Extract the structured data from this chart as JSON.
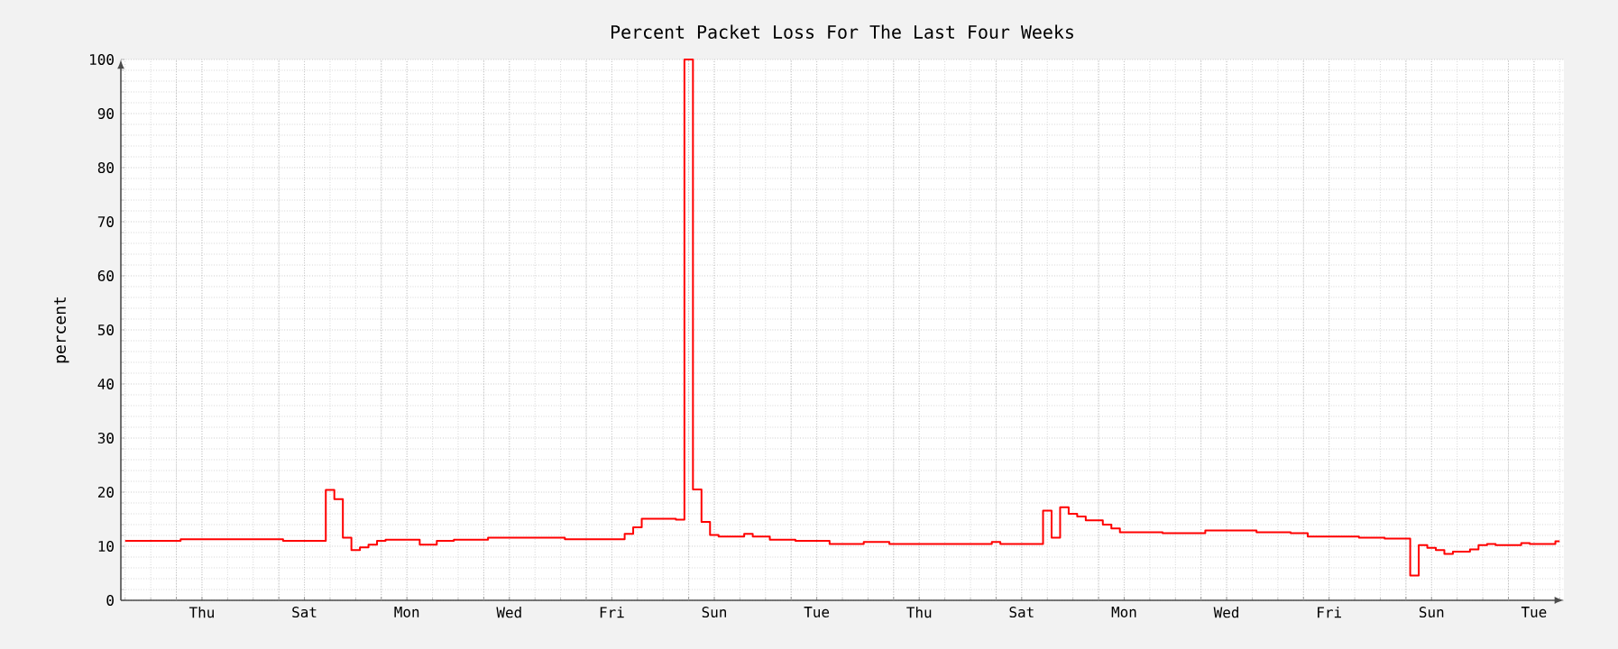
{
  "chart_data": {
    "type": "step",
    "title": "Percent Packet Loss For The Last Four Weeks",
    "ylabel": "percent",
    "color": "#ff0000",
    "grid": true,
    "categories": [
      null,
      null,
      null,
      null,
      null,
      null,
      null,
      null,
      null,
      "Thu",
      null,
      null,
      null,
      null,
      null,
      null,
      null,
      null,
      null,
      null,
      null,
      "Sat",
      null,
      null,
      null,
      null,
      null,
      null,
      null,
      null,
      null,
      null,
      null,
      "Mon",
      null,
      null,
      null,
      null,
      null,
      null,
      null,
      null,
      null,
      null,
      null,
      "Wed",
      null,
      null,
      null,
      null,
      null,
      null,
      null,
      null,
      null,
      null,
      null,
      "Fri",
      null,
      null,
      null,
      null,
      null,
      null,
      null,
      null,
      null,
      null,
      null,
      "Sun",
      null,
      null,
      null,
      null,
      null,
      null,
      null,
      null,
      null,
      null,
      null,
      "Tue",
      null,
      null,
      null,
      null,
      null,
      null,
      null,
      null,
      null,
      null,
      null,
      "Thu",
      null,
      null,
      null,
      null,
      null,
      null,
      null,
      null,
      null,
      null,
      null,
      "Sat",
      null,
      null,
      null,
      null,
      null,
      null,
      null,
      null,
      null,
      null,
      null,
      "Mon",
      null,
      null,
      null,
      null,
      null,
      null,
      null,
      null,
      null,
      null,
      null,
      "Wed",
      null,
      null,
      null,
      null,
      null,
      null,
      null,
      null,
      null,
      null,
      null,
      "Fri",
      null,
      null,
      null,
      null,
      null,
      null,
      null,
      null,
      null,
      null,
      null,
      "Sun",
      null,
      null,
      null,
      null,
      null,
      null,
      null,
      null,
      null,
      null,
      null,
      "Tue",
      null,
      null,
      null
    ],
    "values": [
      11.0,
      11.0,
      11.0,
      11.0,
      11.0,
      11.0,
      11.0,
      11.3,
      11.3,
      11.3,
      11.3,
      11.3,
      11.3,
      11.3,
      11.3,
      11.3,
      11.3,
      11.3,
      11.3,
      11.0,
      11.0,
      11.0,
      11.0,
      11.0,
      20.4,
      18.7,
      11.6,
      9.3,
      9.8,
      10.3,
      11.0,
      11.2,
      11.2,
      11.2,
      11.2,
      10.3,
      10.3,
      11.0,
      11.0,
      11.2,
      11.2,
      11.2,
      11.2,
      11.6,
      11.6,
      11.6,
      11.6,
      11.6,
      11.6,
      11.6,
      11.6,
      11.6,
      11.3,
      11.3,
      11.3,
      11.3,
      11.3,
      11.3,
      11.3,
      12.3,
      13.5,
      15.1,
      15.1,
      15.1,
      15.1,
      14.9,
      100,
      20.5,
      14.5,
      12.1,
      11.8,
      11.8,
      11.8,
      12.3,
      11.8,
      11.8,
      11.2,
      11.2,
      11.2,
      11.0,
      11.0,
      11.0,
      11.0,
      10.4,
      10.4,
      10.4,
      10.4,
      10.8,
      10.8,
      10.8,
      10.4,
      10.4,
      10.4,
      10.4,
      10.4,
      10.4,
      10.4,
      10.4,
      10.4,
      10.4,
      10.4,
      10.4,
      10.8,
      10.4,
      10.4,
      10.4,
      10.4,
      10.4,
      16.6,
      11.6,
      17.2,
      16.0,
      15.5,
      14.8,
      14.8,
      14.0,
      13.3,
      12.6,
      12.6,
      12.6,
      12.6,
      12.6,
      12.4,
      12.4,
      12.4,
      12.4,
      12.4,
      12.9,
      12.9,
      12.9,
      12.9,
      12.9,
      12.9,
      12.6,
      12.6,
      12.6,
      12.6,
      12.4,
      12.4,
      11.8,
      11.8,
      11.8,
      11.8,
      11.8,
      11.8,
      11.6,
      11.6,
      11.6,
      11.4,
      11.4,
      11.4,
      4.6,
      10.2,
      9.7,
      9.3,
      8.6,
      9.0,
      9.0,
      9.4,
      10.2,
      10.4,
      10.2,
      10.2,
      10.2,
      10.6,
      10.4,
      10.4,
      10.4,
      10.9
    ],
    "ylim": [
      0,
      100
    ],
    "yticks": [
      0,
      10,
      20,
      30,
      40,
      50,
      60,
      70,
      80,
      90,
      100
    ]
  }
}
